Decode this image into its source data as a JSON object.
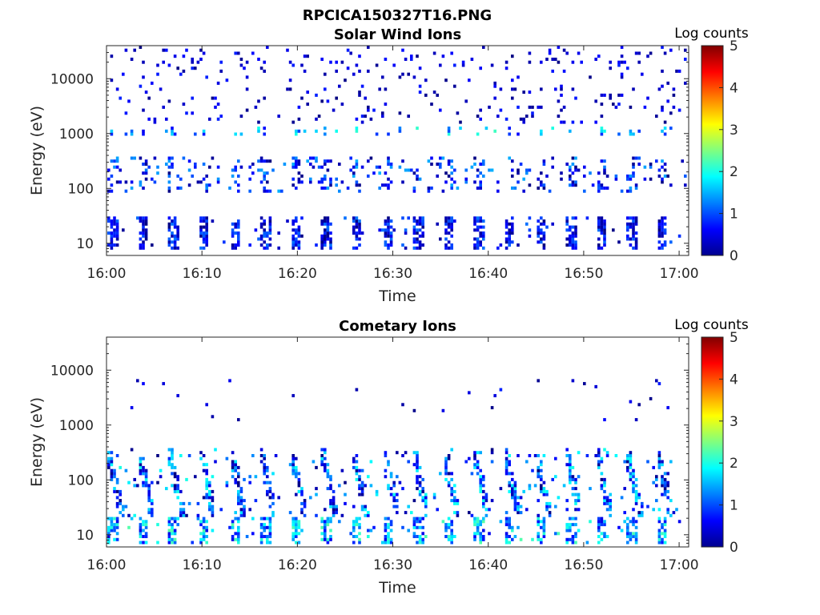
{
  "figure": {
    "title": "RPCICA150327T16.PNG"
  },
  "chart_data": [
    {
      "type": "heatmap",
      "title": "Solar Wind Ions",
      "xlabel": "Time",
      "ylabel": "Energy (eV)",
      "x_ticks": [
        "16:00",
        "16:10",
        "16:20",
        "16:30",
        "16:40",
        "16:50",
        "17:00"
      ],
      "xlim": [
        "16:00",
        "17:01"
      ],
      "y_scale": "log",
      "y_ticks": [
        {
          "value": 10,
          "label": "10"
        },
        {
          "value": 100,
          "label": "100"
        },
        {
          "value": 1000,
          "label": "1000"
        },
        {
          "value": 10000,
          "label": "10000"
        }
      ],
      "ylim": [
        6,
        40000
      ],
      "colorbar": {
        "label": "Log counts",
        "range": [
          0,
          5
        ],
        "ticks": [
          "0",
          "1",
          "2",
          "3",
          "4",
          "5"
        ],
        "colormap": "jet"
      },
      "bands": [
        {
          "energy_range": [
            8,
            30
          ],
          "log_counts": [
            0,
            1.2
          ],
          "pattern": "periodic vertical stripes"
        },
        {
          "energy_range": [
            80,
            400
          ],
          "log_counts": [
            0,
            1.5
          ],
          "pattern": "scattered clusters"
        },
        {
          "energy_range": [
            900,
            1400
          ],
          "log_counts": [
            0.5,
            2.2
          ],
          "pattern": "periodic spots"
        },
        {
          "energy_range": [
            1500,
            40000
          ],
          "log_counts": [
            0,
            0.8
          ],
          "pattern": "sparse dots"
        }
      ]
    },
    {
      "type": "heatmap",
      "title": "Cometary Ions",
      "xlabel": "Time",
      "ylabel": "Energy (eV)",
      "x_ticks": [
        "16:00",
        "16:10",
        "16:20",
        "16:30",
        "16:40",
        "16:50",
        "17:00"
      ],
      "xlim": [
        "16:00",
        "17:01"
      ],
      "y_scale": "log",
      "y_ticks": [
        {
          "value": 10,
          "label": "10"
        },
        {
          "value": 100,
          "label": "100"
        },
        {
          "value": 1000,
          "label": "1000"
        },
        {
          "value": 10000,
          "label": "10000"
        }
      ],
      "ylim": [
        6,
        40000
      ],
      "colorbar": {
        "label": "Log counts",
        "range": [
          0,
          5
        ],
        "ticks": [
          "0",
          "1",
          "2",
          "3",
          "4",
          "5"
        ],
        "colormap": "jet"
      },
      "bands": [
        {
          "energy_range": [
            7,
            20
          ],
          "log_counts": [
            0.5,
            2.3
          ],
          "pattern": "periodic vertical stripes"
        },
        {
          "energy_range": [
            20,
            400
          ],
          "log_counts": [
            0,
            2.0
          ],
          "pattern": "periodic dispersive arcs"
        },
        {
          "energy_range": [
            1200,
            8000
          ],
          "log_counts": [
            0,
            0.8
          ],
          "pattern": "sparse dots"
        }
      ]
    }
  ]
}
